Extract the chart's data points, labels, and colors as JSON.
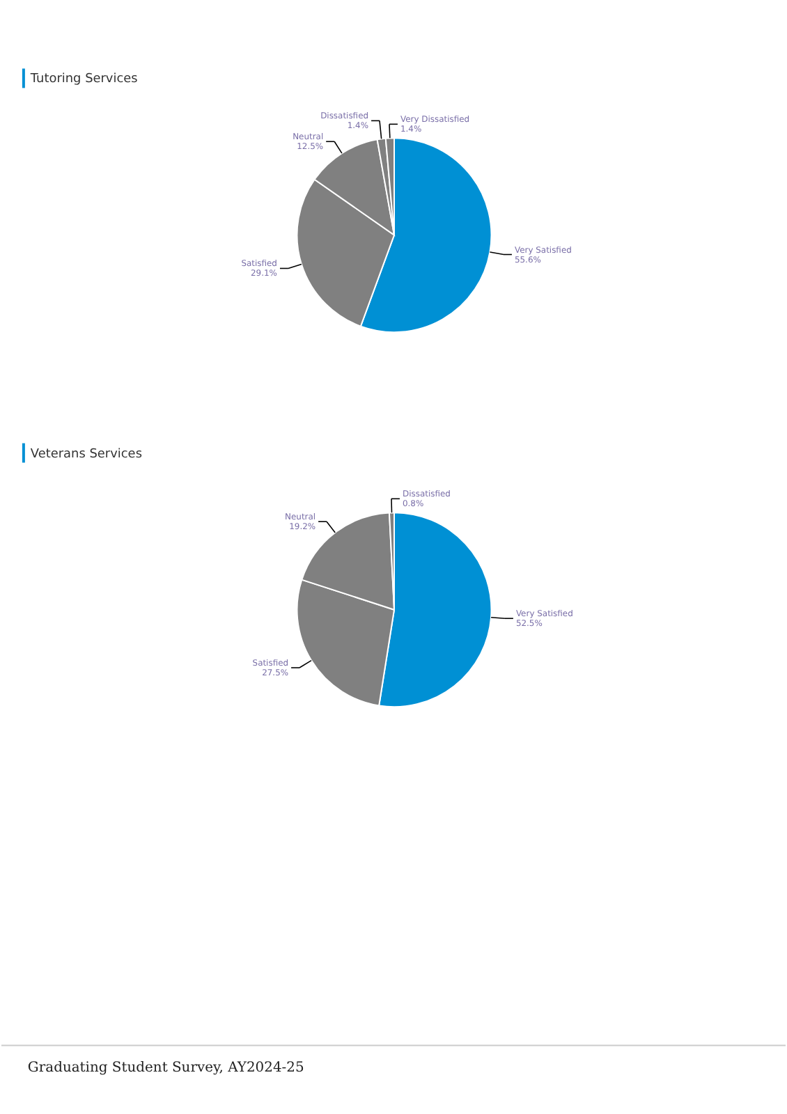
{
  "chart_data": [
    {
      "type": "pie",
      "title": "Tutoring Services",
      "categories": [
        "Very Satisfied",
        "Satisfied",
        "Neutral",
        "Dissatisfied",
        "Very Dissatisfied"
      ],
      "values": [
        55.6,
        29.1,
        12.5,
        1.4,
        1.4
      ],
      "colors": [
        "#0090d4",
        "#808080",
        "#808080",
        "#808080",
        "#808080"
      ],
      "value_labels": [
        "55.6%",
        "29.1%",
        "12.5%",
        "1.4%",
        "1.4%"
      ],
      "legend": false
    },
    {
      "type": "pie",
      "title": "Veterans Services",
      "categories": [
        "Very Satisfied",
        "Satisfied",
        "Neutral",
        "Dissatisfied"
      ],
      "values": [
        52.5,
        27.5,
        19.2,
        0.8
      ],
      "colors": [
        "#0090d4",
        "#808080",
        "#808080",
        "#808080"
      ],
      "value_labels": [
        "52.5%",
        "27.5%",
        "19.2%",
        "0.8%"
      ],
      "legend": false,
      "annotations": [
        "Graduating Student Survey, AY2024-25"
      ]
    }
  ]
}
